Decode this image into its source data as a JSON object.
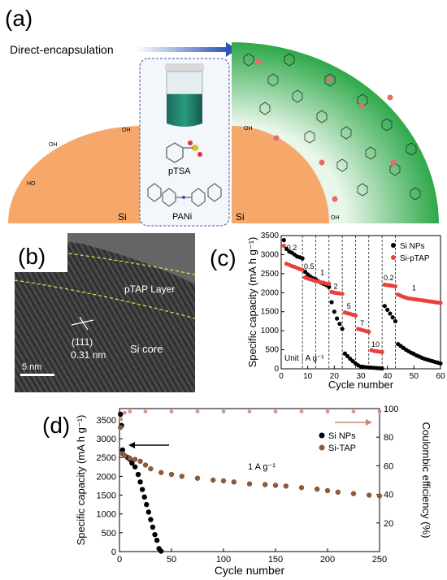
{
  "panel_a": {
    "label": "(a)",
    "arrow_text": "Direct-encapsulation",
    "reagent_1": "pTSA",
    "reagent_2": "PANi",
    "left_core": "Si",
    "right_core": "Si",
    "oh_group": "OH",
    "ho_group": "HO",
    "colors": {
      "si_sphere": "#f6a86b",
      "shell_green": "#2ea84a",
      "arrow_blue": "#2f54b8",
      "box_border": "#3c5a99"
    }
  },
  "panel_b": {
    "label": "(b)",
    "layer_label": "pTAP Layer",
    "plane_label": "(111)",
    "spacing_label": "0.31 nm",
    "core_label": "Si core",
    "scale_bar": "5 nm"
  },
  "panel_c": {
    "label": "(c)",
    "unit_note": "Unit : A g⁻¹",
    "rate_labels": [
      "0.2",
      "0.5",
      "1",
      "2",
      "5",
      "7",
      "10",
      "0.2",
      "1"
    ],
    "chart_data": {
      "type": "scatter",
      "xlabel": "Cycle number",
      "ylabel": "Specific capacity (mA h g⁻¹)",
      "xlim": [
        0,
        60
      ],
      "ylim": [
        0,
        3500
      ],
      "xticks": [
        0,
        10,
        20,
        30,
        40,
        50,
        60
      ],
      "yticks": [
        0,
        500,
        1000,
        1500,
        2000,
        2500,
        3000,
        3500
      ],
      "rate_boundaries": [
        8,
        13,
        18,
        23,
        28,
        33,
        38,
        43
      ],
      "legend_position": "top-right",
      "series": [
        {
          "name": "Si NPs",
          "color": "#000000",
          "x": [
            1,
            2,
            3,
            4,
            5,
            6,
            7,
            8,
            9,
            10,
            11,
            12,
            13,
            14,
            15,
            16,
            17,
            18,
            19,
            20,
            21,
            22,
            23,
            24,
            25,
            26,
            27,
            28,
            29,
            30,
            31,
            32,
            33,
            34,
            35,
            36,
            37,
            38,
            39,
            40,
            41,
            42,
            43,
            44,
            45,
            46,
            47,
            48,
            49,
            50,
            51,
            52,
            53,
            54,
            55,
            56,
            57,
            58,
            59,
            60
          ],
          "y": [
            3380,
            3150,
            3080,
            3050,
            3000,
            2950,
            2930,
            2900,
            2550,
            2480,
            2420,
            2380,
            2350,
            2300,
            2260,
            2230,
            2200,
            2150,
            1750,
            1500,
            1320,
            1180,
            1050,
            400,
            330,
            260,
            200,
            140,
            90,
            60,
            50,
            40,
            35,
            30,
            25,
            20,
            15,
            10,
            1650,
            1550,
            1450,
            1350,
            1250,
            650,
            600,
            550,
            500,
            460,
            420,
            390,
            350,
            320,
            290,
            260,
            240,
            220,
            200,
            180,
            160,
            140
          ]
        },
        {
          "name": "Si-pTAP",
          "color": "#e8403a",
          "x": [
            1,
            2,
            3,
            4,
            5,
            6,
            7,
            8,
            9,
            10,
            11,
            12,
            13,
            14,
            15,
            16,
            17,
            18,
            19,
            20,
            21,
            22,
            23,
            24,
            25,
            26,
            27,
            28,
            29,
            30,
            31,
            32,
            33,
            34,
            35,
            36,
            37,
            38,
            39,
            40,
            41,
            42,
            43,
            44,
            45,
            46,
            47,
            48,
            49,
            50,
            51,
            52,
            53,
            54,
            55,
            56,
            57,
            58,
            59,
            60
          ],
          "y": [
            3230,
            2760,
            2730,
            2700,
            2680,
            2650,
            2620,
            2600,
            2400,
            2370,
            2350,
            2330,
            2300,
            2290,
            2270,
            2260,
            2240,
            2230,
            2020,
            2000,
            1990,
            1980,
            1970,
            1480,
            1460,
            1440,
            1420,
            1400,
            1050,
            1030,
            1010,
            990,
            970,
            490,
            470,
            460,
            450,
            440,
            2210,
            2200,
            2190,
            2180,
            2170,
            1950,
            1920,
            1890,
            1870,
            1850,
            1840,
            1830,
            1820,
            1810,
            1800,
            1790,
            1780,
            1770,
            1760,
            1750,
            1740,
            1730
          ]
        }
      ]
    }
  },
  "panel_d": {
    "label": "(d)",
    "current_note": "1 A g⁻¹",
    "chart_data": {
      "type": "scatter",
      "xlabel": "Cycle number",
      "ylabel": "Specific capacity (mA h g⁻¹)",
      "y2label": "Coulombic efficiency (%)",
      "xlim": [
        0,
        250
      ],
      "ylim": [
        0,
        3800
      ],
      "y2lim": [
        0,
        100
      ],
      "xticks": [
        0,
        50,
        100,
        150,
        200,
        250
      ],
      "yticks": [
        0,
        500,
        1000,
        1500,
        2000,
        2500,
        3000,
        3500
      ],
      "y2ticks": [
        20,
        40,
        60,
        80,
        100
      ],
      "legend_position": "upper-right",
      "series": [
        {
          "name": "Si NPs",
          "color": "#000000",
          "x": [
            1,
            2,
            3,
            5,
            8,
            10,
            12,
            15,
            18,
            20,
            22,
            24,
            26,
            28,
            30,
            32,
            34,
            36,
            38,
            40
          ],
          "y": [
            3650,
            3350,
            2700,
            2550,
            2500,
            2450,
            2350,
            2250,
            2050,
            1850,
            1650,
            1450,
            1250,
            1050,
            850,
            650,
            450,
            300,
            80,
            10
          ]
        },
        {
          "name": "Si-TAP",
          "color": "#8b5a3a",
          "x": [
            1,
            3,
            5,
            10,
            15,
            20,
            25,
            30,
            40,
            50,
            60,
            75,
            90,
            100,
            110,
            125,
            140,
            150,
            160,
            175,
            190,
            200,
            210,
            225,
            240,
            250
          ],
          "y": [
            3300,
            2600,
            2550,
            2480,
            2450,
            2400,
            2300,
            2200,
            2100,
            2050,
            2000,
            1950,
            1900,
            1880,
            1850,
            1800,
            1780,
            1760,
            1740,
            1700,
            1660,
            1620,
            1580,
            1540,
            1500,
            1480
          ]
        },
        {
          "name": "Coulombic efficiency",
          "color": "#c98a6c",
          "axis": "y2",
          "x": [
            1,
            5,
            10,
            25,
            50,
            75,
            100,
            125,
            150,
            175,
            200,
            225,
            250
          ],
          "y": [
            93,
            97,
            98,
            98,
            98,
            98,
            98,
            98,
            98,
            98,
            98,
            98,
            98
          ]
        }
      ]
    }
  }
}
